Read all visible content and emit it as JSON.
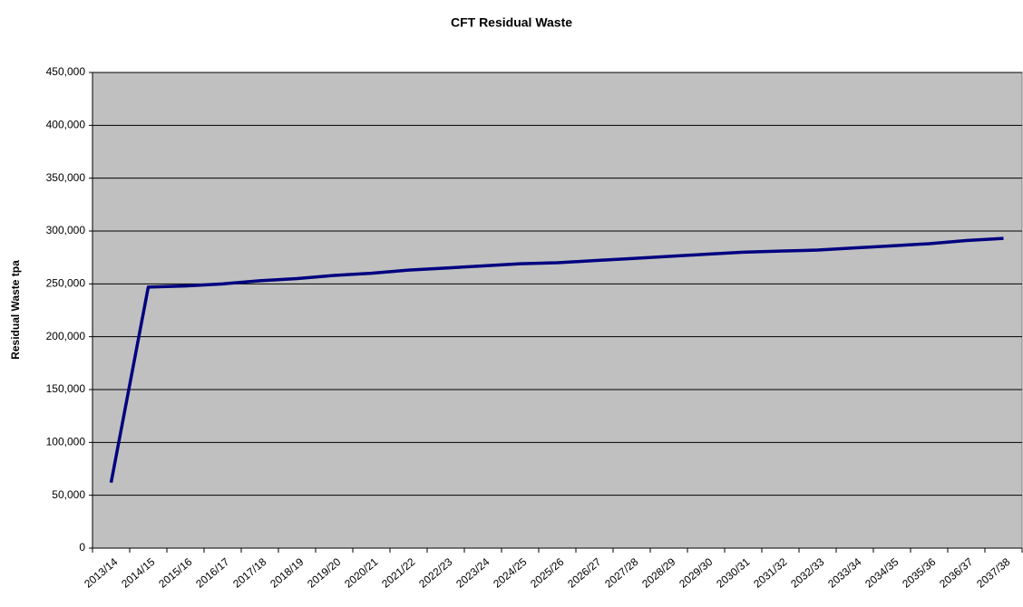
{
  "chart_data": {
    "type": "line",
    "title": "CFT Residual Waste",
    "y_label": "Residual Waste tpa",
    "categories": [
      "2013/14",
      "2014/15",
      "2015/16",
      "2016/17",
      "2017/18",
      "2018/19",
      "2019/20",
      "2020/21",
      "2021/22",
      "2022/23",
      "2023/24",
      "2024/25",
      "2025/26",
      "2026/27",
      "2027/28",
      "2028/29",
      "2029/30",
      "2030/31",
      "2031/32",
      "2032/33",
      "2033/34",
      "2034/35",
      "2035/36",
      "2036/37",
      "2037/38"
    ],
    "series": [
      {
        "name": "Residual Waste",
        "color": "#000080",
        "values": [
          62000,
          247000,
          248000,
          250000,
          253000,
          255000,
          258000,
          260000,
          263000,
          265000,
          267000,
          269000,
          270000,
          272000,
          274000,
          276000,
          278000,
          280000,
          281000,
          282000,
          284000,
          286000,
          288000,
          291000,
          293000
        ]
      }
    ],
    "ylim": [
      0,
      450000
    ],
    "yticks": [
      0,
      {
        "value": 50000,
        "label": "50,000"
      },
      {
        "value": 100000,
        "label": "100,000"
      },
      {
        "value": 150000,
        "label": "150,000"
      },
      {
        "value": 200000,
        "label": "200,000"
      },
      {
        "value": 250000,
        "label": "250,000"
      },
      {
        "value": 300000,
        "label": "300,000"
      },
      {
        "value": 350000,
        "label": "350,000"
      },
      {
        "value": 400000,
        "label": "400,000"
      },
      {
        "value": 450000,
        "label": "450,000"
      }
    ],
    "grid": true,
    "plot_background": "#c0c0c0"
  }
}
